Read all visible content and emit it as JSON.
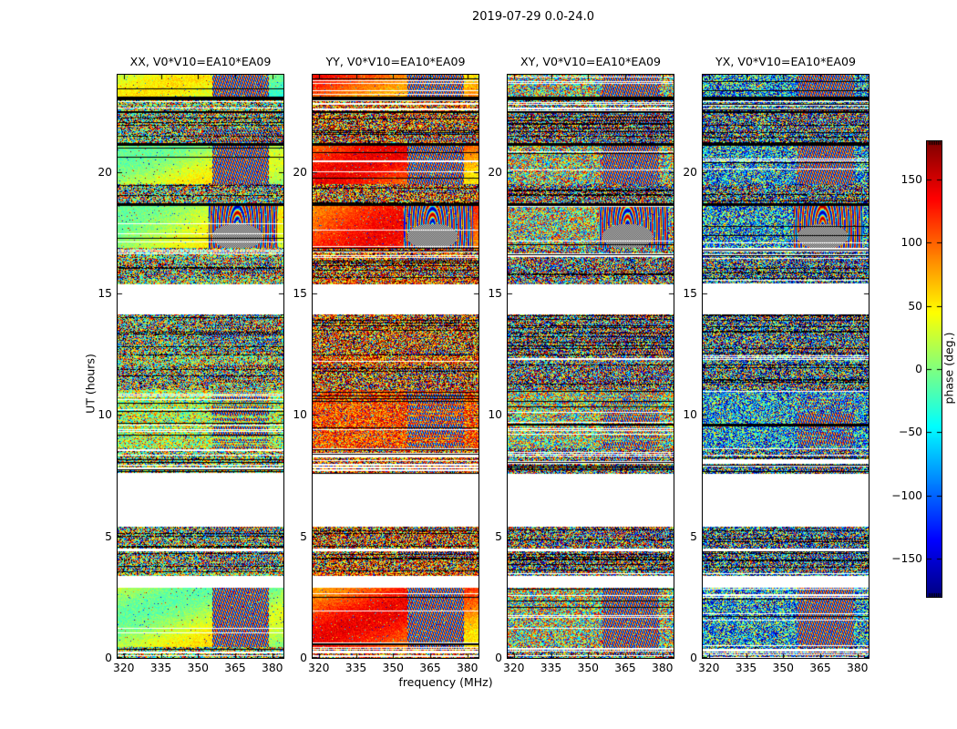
{
  "chart_data": {
    "type": "heatmap",
    "title": "2019-07-29 0.0-24.0",
    "xlabel": "frequency (MHz)",
    "ylabel": "UT (hours)",
    "x_range": [
      317.5,
      384.5
    ],
    "x_ticks": [
      320,
      335,
      350,
      365,
      380
    ],
    "y_range": [
      0,
      24
    ],
    "y_ticks": [
      0,
      5,
      10,
      15,
      20
    ],
    "colorbar": {
      "label": "phase (deg.)",
      "colormap": "jet",
      "range": [
        -180,
        180
      ],
      "ticks": [
        150,
        100,
        50,
        0,
        -50,
        -100,
        -150
      ]
    },
    "panels": [
      {
        "title": "XX, V0*V10=EA10*EA09",
        "pol": "xx",
        "style": "smooth-green",
        "bias": 0.56,
        "spread": 0.22,
        "speckle": false
      },
      {
        "title": "YY, V0*V10=EA10*EA09",
        "pol": "yy",
        "style": "smooth-orange",
        "bias": 0.8,
        "spread": 0.14,
        "speckle": false
      },
      {
        "title": "XY, V0*V10=EA10*EA09",
        "pol": "xy",
        "style": "speckle-green",
        "bias": 0.55,
        "spread": 0.4,
        "speckle": true
      },
      {
        "title": "YX, V0*V10=EA10*EA09",
        "pol": "yx",
        "style": "speckle-blue",
        "bias": 0.3,
        "spread": 0.38,
        "speckle": true
      }
    ],
    "moire_span": [
      0.57,
      0.91
    ],
    "bands": [
      {
        "s": 0.0,
        "e": 0.0375,
        "k": "smooth"
      },
      {
        "s": 0.0375,
        "e": 0.044,
        "k": "black"
      },
      {
        "s": 0.044,
        "e": 0.0625,
        "k": "rows"
      },
      {
        "s": 0.0625,
        "e": 0.066,
        "k": "black"
      },
      {
        "s": 0.066,
        "e": 0.117,
        "k": "dense"
      },
      {
        "s": 0.117,
        "e": 0.122,
        "k": "black"
      },
      {
        "s": 0.122,
        "e": 0.17,
        "k": "smooth"
      },
      {
        "s": 0.17,
        "e": 0.1875,
        "k": "smooth"
      },
      {
        "s": 0.1875,
        "e": 0.22,
        "k": "dense"
      },
      {
        "s": 0.22,
        "e": 0.225,
        "k": "black"
      },
      {
        "s": 0.225,
        "e": 0.297,
        "k": "smooth-fingerprint"
      },
      {
        "s": 0.297,
        "e": 0.316,
        "k": "rows"
      },
      {
        "s": 0.316,
        "e": 0.35,
        "k": "dense"
      },
      {
        "s": 0.35,
        "e": 0.3595,
        "k": "noise"
      },
      {
        "s": 0.3595,
        "e": 0.411,
        "k": "white"
      },
      {
        "s": 0.411,
        "e": 0.481,
        "k": "dense"
      },
      {
        "s": 0.481,
        "e": 0.497,
        "k": "noise"
      },
      {
        "s": 0.497,
        "e": 0.541,
        "k": "dense"
      },
      {
        "s": 0.541,
        "e": 0.5985,
        "k": "mottled"
      },
      {
        "s": 0.5985,
        "e": 0.641,
        "k": "mottled"
      },
      {
        "s": 0.641,
        "e": 0.661,
        "k": "rows"
      },
      {
        "s": 0.661,
        "e": 0.6845,
        "k": "rows"
      },
      {
        "s": 0.6845,
        "e": 0.775,
        "k": "white"
      },
      {
        "s": 0.775,
        "e": 0.8125,
        "k": "dense"
      },
      {
        "s": 0.8125,
        "e": 0.8175,
        "k": "white"
      },
      {
        "s": 0.8175,
        "e": 0.853,
        "k": "dense"
      },
      {
        "s": 0.853,
        "e": 0.8595,
        "k": "noise"
      },
      {
        "s": 0.8595,
        "e": 0.88,
        "k": "white"
      },
      {
        "s": 0.88,
        "e": 0.922,
        "k": "smooth"
      },
      {
        "s": 0.922,
        "e": 0.966,
        "k": "smooth"
      },
      {
        "s": 0.966,
        "e": 0.9815,
        "k": "smooth"
      },
      {
        "s": 0.9815,
        "e": 1.0,
        "k": "rows"
      }
    ],
    "structure_notes": "White horizontal bands = no data; black rows = flagged times; checkerboard/arc moire on the high-frequency side = rapid phase wrapping."
  }
}
